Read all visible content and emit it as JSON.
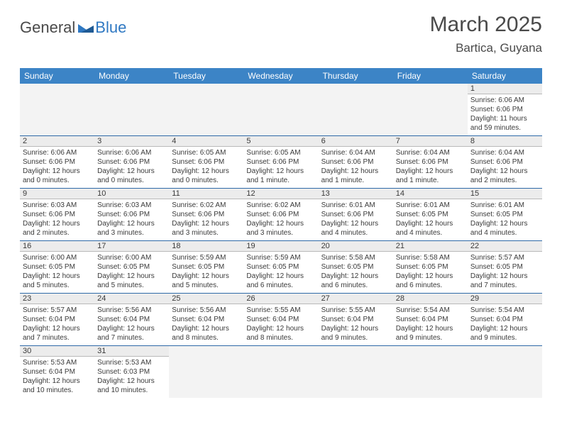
{
  "logo": {
    "text_general": "General",
    "text_blue": "Blue"
  },
  "header": {
    "month_title": "March 2025",
    "location": "Bartica, Guyana"
  },
  "colors": {
    "header_bg": "#3c84c6",
    "header_text": "#ffffff",
    "daynum_bg": "#ececec",
    "row_divider": "#2f6aa8",
    "text": "#3a3a3a",
    "logo_blue": "#2f78c2"
  },
  "calendar": {
    "day_headers": [
      "Sunday",
      "Monday",
      "Tuesday",
      "Wednesday",
      "Thursday",
      "Friday",
      "Saturday"
    ],
    "leading_blanks": 6,
    "days": [
      {
        "n": 1,
        "sunrise": "6:06 AM",
        "sunset": "6:06 PM",
        "daylight": "11 hours and 59 minutes."
      },
      {
        "n": 2,
        "sunrise": "6:06 AM",
        "sunset": "6:06 PM",
        "daylight": "12 hours and 0 minutes."
      },
      {
        "n": 3,
        "sunrise": "6:06 AM",
        "sunset": "6:06 PM",
        "daylight": "12 hours and 0 minutes."
      },
      {
        "n": 4,
        "sunrise": "6:05 AM",
        "sunset": "6:06 PM",
        "daylight": "12 hours and 0 minutes."
      },
      {
        "n": 5,
        "sunrise": "6:05 AM",
        "sunset": "6:06 PM",
        "daylight": "12 hours and 1 minute."
      },
      {
        "n": 6,
        "sunrise": "6:04 AM",
        "sunset": "6:06 PM",
        "daylight": "12 hours and 1 minute."
      },
      {
        "n": 7,
        "sunrise": "6:04 AM",
        "sunset": "6:06 PM",
        "daylight": "12 hours and 1 minute."
      },
      {
        "n": 8,
        "sunrise": "6:04 AM",
        "sunset": "6:06 PM",
        "daylight": "12 hours and 2 minutes."
      },
      {
        "n": 9,
        "sunrise": "6:03 AM",
        "sunset": "6:06 PM",
        "daylight": "12 hours and 2 minutes."
      },
      {
        "n": 10,
        "sunrise": "6:03 AM",
        "sunset": "6:06 PM",
        "daylight": "12 hours and 3 minutes."
      },
      {
        "n": 11,
        "sunrise": "6:02 AM",
        "sunset": "6:06 PM",
        "daylight": "12 hours and 3 minutes."
      },
      {
        "n": 12,
        "sunrise": "6:02 AM",
        "sunset": "6:06 PM",
        "daylight": "12 hours and 3 minutes."
      },
      {
        "n": 13,
        "sunrise": "6:01 AM",
        "sunset": "6:06 PM",
        "daylight": "12 hours and 4 minutes."
      },
      {
        "n": 14,
        "sunrise": "6:01 AM",
        "sunset": "6:05 PM",
        "daylight": "12 hours and 4 minutes."
      },
      {
        "n": 15,
        "sunrise": "6:01 AM",
        "sunset": "6:05 PM",
        "daylight": "12 hours and 4 minutes."
      },
      {
        "n": 16,
        "sunrise": "6:00 AM",
        "sunset": "6:05 PM",
        "daylight": "12 hours and 5 minutes."
      },
      {
        "n": 17,
        "sunrise": "6:00 AM",
        "sunset": "6:05 PM",
        "daylight": "12 hours and 5 minutes."
      },
      {
        "n": 18,
        "sunrise": "5:59 AM",
        "sunset": "6:05 PM",
        "daylight": "12 hours and 5 minutes."
      },
      {
        "n": 19,
        "sunrise": "5:59 AM",
        "sunset": "6:05 PM",
        "daylight": "12 hours and 6 minutes."
      },
      {
        "n": 20,
        "sunrise": "5:58 AM",
        "sunset": "6:05 PM",
        "daylight": "12 hours and 6 minutes."
      },
      {
        "n": 21,
        "sunrise": "5:58 AM",
        "sunset": "6:05 PM",
        "daylight": "12 hours and 6 minutes."
      },
      {
        "n": 22,
        "sunrise": "5:57 AM",
        "sunset": "6:05 PM",
        "daylight": "12 hours and 7 minutes."
      },
      {
        "n": 23,
        "sunrise": "5:57 AM",
        "sunset": "6:04 PM",
        "daylight": "12 hours and 7 minutes."
      },
      {
        "n": 24,
        "sunrise": "5:56 AM",
        "sunset": "6:04 PM",
        "daylight": "12 hours and 7 minutes."
      },
      {
        "n": 25,
        "sunrise": "5:56 AM",
        "sunset": "6:04 PM",
        "daylight": "12 hours and 8 minutes."
      },
      {
        "n": 26,
        "sunrise": "5:55 AM",
        "sunset": "6:04 PM",
        "daylight": "12 hours and 8 minutes."
      },
      {
        "n": 27,
        "sunrise": "5:55 AM",
        "sunset": "6:04 PM",
        "daylight": "12 hours and 9 minutes."
      },
      {
        "n": 28,
        "sunrise": "5:54 AM",
        "sunset": "6:04 PM",
        "daylight": "12 hours and 9 minutes."
      },
      {
        "n": 29,
        "sunrise": "5:54 AM",
        "sunset": "6:04 PM",
        "daylight": "12 hours and 9 minutes."
      },
      {
        "n": 30,
        "sunrise": "5:53 AM",
        "sunset": "6:04 PM",
        "daylight": "12 hours and 10 minutes."
      },
      {
        "n": 31,
        "sunrise": "5:53 AM",
        "sunset": "6:03 PM",
        "daylight": "12 hours and 10 minutes."
      }
    ],
    "labels": {
      "sunrise": "Sunrise:",
      "sunset": "Sunset:",
      "daylight": "Daylight:"
    }
  }
}
